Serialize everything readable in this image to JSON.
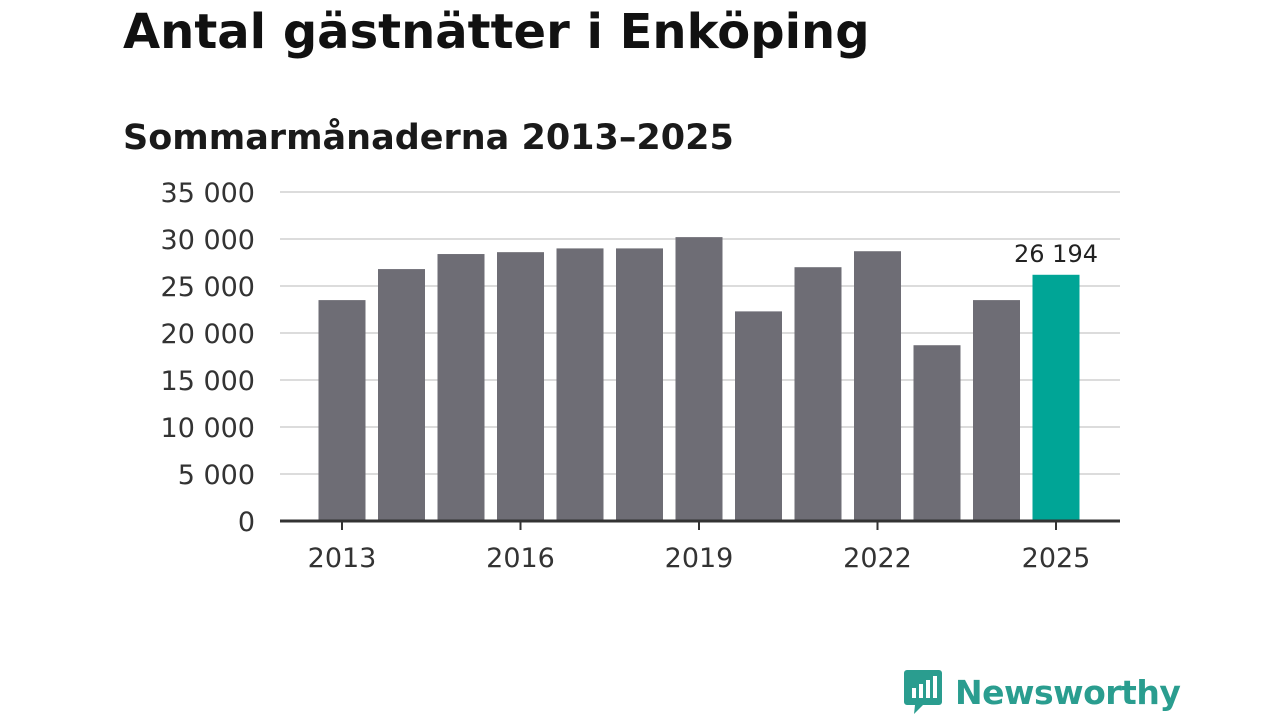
{
  "chart_data": {
    "type": "bar",
    "title": "Antal gästnätter i Enköping",
    "subtitle": "Sommarmånaderna 2013–2025",
    "categories": [
      "2013",
      "2014",
      "2015",
      "2016",
      "2017",
      "2018",
      "2019",
      "2020",
      "2021",
      "2022",
      "2023",
      "2024",
      "2025"
    ],
    "values": [
      23500,
      26800,
      28400,
      28600,
      29000,
      29000,
      30200,
      22300,
      27000,
      28700,
      18700,
      23500,
      26194
    ],
    "x_tick_labels": [
      "2013",
      "2016",
      "2019",
      "2022",
      "2025"
    ],
    "y_tick_labels": [
      "0",
      "5 000",
      "10 000",
      "15 000",
      "20 000",
      "25 000",
      "30 000",
      "35 000"
    ],
    "y_ticks": [
      0,
      5000,
      10000,
      15000,
      20000,
      25000,
      30000,
      35000
    ],
    "ylim": [
      0,
      35000
    ],
    "grid": true,
    "highlight_index": 12,
    "highlight_label": "26 194",
    "colors": {
      "bar": "#6e6d75",
      "highlight": "#00a596",
      "grid": "#dcdcdc",
      "axis": "#333333"
    }
  },
  "brand": {
    "name": "Newsworthy",
    "icon": "newsworthy-logo-icon",
    "color": "#2a9d8f"
  }
}
